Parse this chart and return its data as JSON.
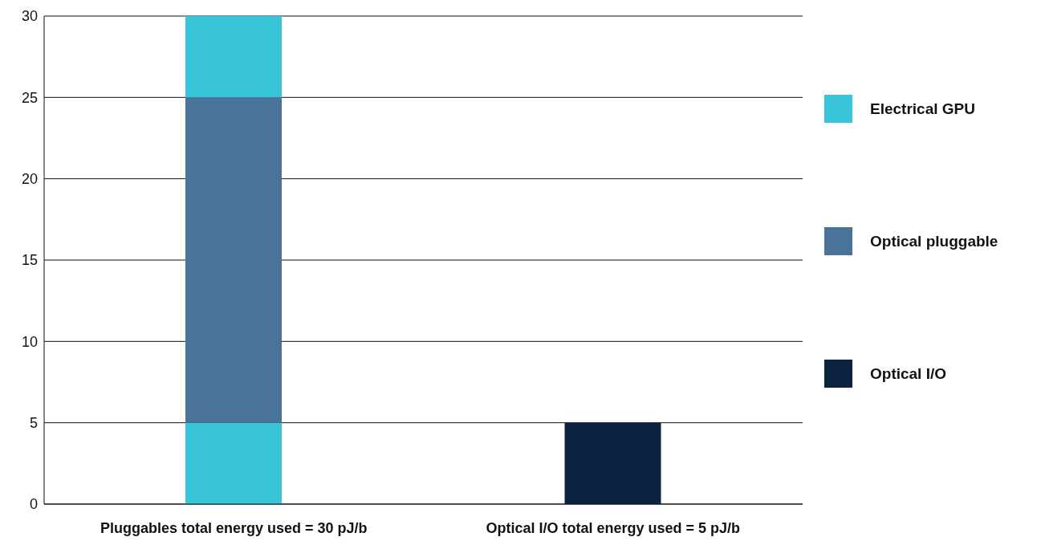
{
  "chart_data": {
    "type": "bar",
    "stacked": true,
    "categories": [
      "Pluggables total energy used = 30 pJ/b",
      "Optical I/O total energy used = 5 pJ/b"
    ],
    "series": [
      {
        "name": "Electrical GPU",
        "color": "#38c4d9",
        "values": [
          5,
          null
        ]
      },
      {
        "name": "Optical pluggable",
        "color": "#4a7399",
        "values": [
          20,
          null
        ]
      },
      {
        "color": "#38c4d9",
        "values": [
          5,
          null
        ]
      },
      {
        "name": "Optical I/O",
        "color": "#0c2340",
        "values": [
          null,
          5
        ]
      }
    ],
    "ylim": [
      0,
      30
    ],
    "yticks": [
      0,
      5,
      10,
      15,
      20,
      25,
      30
    ],
    "grid": "y",
    "legend": "right"
  }
}
